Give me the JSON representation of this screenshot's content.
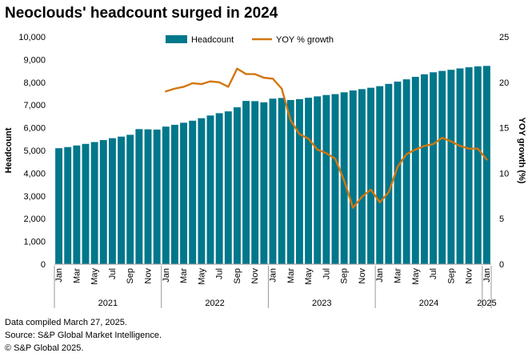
{
  "title": "Neoclouds' headcount surged in 2024",
  "notes": [
    "Data compiled March 27, 2025.",
    "Source: S&P Global Market Intelligence.",
    "© S&P Global 2025."
  ],
  "colors": {
    "headcount": "#00778B",
    "yoy": "#D2760F"
  },
  "chart_data": {
    "type": "bar",
    "x": [
      "2021-01",
      "2021-02",
      "2021-03",
      "2021-04",
      "2021-05",
      "2021-06",
      "2021-07",
      "2021-08",
      "2021-09",
      "2021-10",
      "2021-11",
      "2021-12",
      "2022-01",
      "2022-02",
      "2022-03",
      "2022-04",
      "2022-05",
      "2022-06",
      "2022-07",
      "2022-08",
      "2022-09",
      "2022-10",
      "2022-11",
      "2022-12",
      "2023-01",
      "2023-02",
      "2023-03",
      "2023-04",
      "2023-05",
      "2023-06",
      "2023-07",
      "2023-08",
      "2023-09",
      "2023-10",
      "2023-11",
      "2023-12",
      "2024-01",
      "2024-02",
      "2024-03",
      "2024-04",
      "2024-05",
      "2024-06",
      "2024-07",
      "2024-08",
      "2024-09",
      "2024-10",
      "2024-11",
      "2024-12",
      "2025-01"
    ],
    "month_labels": [
      "Jan",
      "",
      "Mar",
      "",
      "May",
      "",
      "Jul",
      "",
      "Sep",
      "",
      "Nov",
      "",
      "Jan",
      "",
      "Mar",
      "",
      "May",
      "",
      "Jul",
      "",
      "Sep",
      "",
      "Nov",
      "",
      "Jan",
      "",
      "Mar",
      "",
      "May",
      "",
      "Jul",
      "",
      "Sep",
      "",
      "Nov",
      "",
      "Jan",
      "",
      "Mar",
      "",
      "May",
      "",
      "Jul",
      "",
      "Sep",
      "",
      "Nov",
      "",
      "Jan"
    ],
    "year_labels": [
      {
        "label": "2021",
        "start": 0,
        "end": 11
      },
      {
        "label": "2022",
        "start": 12,
        "end": 23
      },
      {
        "label": "2023",
        "start": 24,
        "end": 35
      },
      {
        "label": "2024",
        "start": 36,
        "end": 47
      },
      {
        "label": "2025",
        "start": 48,
        "end": 48
      }
    ],
    "series": [
      {
        "name": "Headcount",
        "type": "bar",
        "axis": "left",
        "values": [
          5100,
          5150,
          5220,
          5290,
          5370,
          5460,
          5540,
          5610,
          5690,
          5940,
          5930,
          5920,
          6050,
          6130,
          6220,
          6310,
          6420,
          6540,
          6640,
          6720,
          6900,
          7180,
          7170,
          7120,
          7280,
          7310,
          7220,
          7260,
          7320,
          7380,
          7440,
          7480,
          7560,
          7640,
          7700,
          7760,
          7830,
          7930,
          8030,
          8130,
          8240,
          8350,
          8440,
          8500,
          8550,
          8610,
          8660,
          8700,
          8720
        ]
      },
      {
        "name": "YOY % growth",
        "type": "line",
        "axis": "right",
        "values": [
          null,
          null,
          null,
          null,
          null,
          null,
          null,
          null,
          null,
          null,
          null,
          null,
          19.0,
          19.3,
          19.5,
          19.9,
          19.8,
          20.1,
          20.0,
          19.5,
          21.5,
          20.9,
          20.9,
          20.5,
          20.4,
          19.3,
          15.8,
          14.3,
          13.8,
          12.6,
          12.2,
          11.6,
          9.2,
          6.2,
          7.4,
          8.2,
          6.8,
          7.9,
          10.7,
          12.1,
          12.6,
          13.0,
          13.2,
          13.9,
          13.5,
          13.0,
          12.7,
          12.7,
          11.5
        ]
      }
    ],
    "ylabel": "Headcount",
    "y2label": "YOY growth (%)",
    "ylim": [
      0,
      10000
    ],
    "y_ticks": [
      "0",
      "1,000",
      "2,000",
      "3,000",
      "4,000",
      "5,000",
      "6,000",
      "7,000",
      "8,000",
      "9,000",
      "10,000"
    ],
    "y2lim": [
      0,
      25
    ],
    "y2_ticks": [
      "0",
      "5",
      "10",
      "15",
      "20",
      "25"
    ],
    "grid": false,
    "legend": "top-center"
  }
}
